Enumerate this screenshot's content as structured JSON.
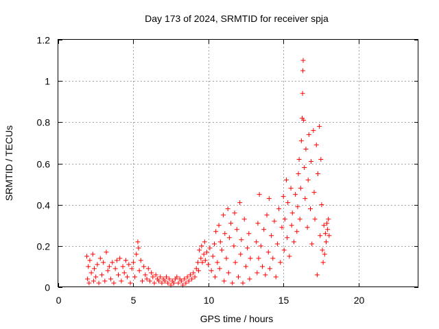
{
  "chart_data": {
    "type": "scatter",
    "title": "Day 173 of 2024, SRMTID for receiver spja",
    "xlabel": "GPS time / hours",
    "ylabel": "SRMTID / TECUs",
    "xlim": [
      0,
      24
    ],
    "ylim": [
      0,
      1.2
    ],
    "xticks": [
      0,
      5,
      10,
      15,
      20
    ],
    "yticks": [
      0,
      0.2,
      0.4,
      0.6,
      0.8,
      1.0,
      1.2
    ],
    "xtick_labels": [
      "0",
      "5",
      "10",
      "15",
      "20"
    ],
    "ytick_labels": [
      "0",
      "0.2",
      "0.4",
      "0.6",
      "0.8",
      "1",
      "1.2"
    ],
    "grid": true,
    "marker": "+",
    "series": [
      {
        "name": "SRMTID",
        "color": "#ff0000",
        "points": [
          [
            1.9,
            0.15
          ],
          [
            1.95,
            0.04
          ],
          [
            2.0,
            0.1
          ],
          [
            2.05,
            0.02
          ],
          [
            2.1,
            0.13
          ],
          [
            2.2,
            0.07
          ],
          [
            2.3,
            0.16
          ],
          [
            2.35,
            0.03
          ],
          [
            2.4,
            0.09
          ],
          [
            2.5,
            0.05
          ],
          [
            2.6,
            0.11
          ],
          [
            2.7,
            0.02
          ],
          [
            2.8,
            0.14
          ],
          [
            2.9,
            0.06
          ],
          [
            3.0,
            0.12
          ],
          [
            3.1,
            0.03
          ],
          [
            3.2,
            0.17
          ],
          [
            3.3,
            0.08
          ],
          [
            3.4,
            0.1
          ],
          [
            3.5,
            0.04
          ],
          [
            3.6,
            0.12
          ],
          [
            3.7,
            0.02
          ],
          [
            3.8,
            0.09
          ],
          [
            3.9,
            0.13
          ],
          [
            4.0,
            0.06
          ],
          [
            4.1,
            0.14
          ],
          [
            4.2,
            0.03
          ],
          [
            4.3,
            0.1
          ],
          [
            4.4,
            0.07
          ],
          [
            4.5,
            0.13
          ],
          [
            4.6,
            0.05
          ],
          [
            4.7,
            0.11
          ],
          [
            4.8,
            0.02
          ],
          [
            4.9,
            0.09
          ],
          [
            5.0,
            0.12
          ],
          [
            5.1,
            0.05
          ],
          [
            5.2,
            0.16
          ],
          [
            5.3,
            0.22
          ],
          [
            5.35,
            0.19
          ],
          [
            5.4,
            0.08
          ],
          [
            5.5,
            0.13
          ],
          [
            5.6,
            0.03
          ],
          [
            5.7,
            0.1
          ],
          [
            5.8,
            0.06
          ],
          [
            5.9,
            0.04
          ],
          [
            6.0,
            0.09
          ],
          [
            6.1,
            0.03
          ],
          [
            6.2,
            0.07
          ],
          [
            6.3,
            0.05
          ],
          [
            6.4,
            0.02
          ],
          [
            6.5,
            0.06
          ],
          [
            6.6,
            0.04
          ],
          [
            6.7,
            0.03
          ],
          [
            6.8,
            0.05
          ],
          [
            6.9,
            0.02
          ],
          [
            7.0,
            0.04
          ],
          [
            7.1,
            0.03
          ],
          [
            7.2,
            0.05
          ],
          [
            7.3,
            0.02
          ],
          [
            7.4,
            0.04
          ],
          [
            7.5,
            0.01
          ],
          [
            7.6,
            0.03
          ],
          [
            7.7,
            0.02
          ],
          [
            7.8,
            0.04
          ],
          [
            7.9,
            0.05
          ],
          [
            8.0,
            0.02
          ],
          [
            8.1,
            0.04
          ],
          [
            8.2,
            0.03
          ],
          [
            8.3,
            0.01
          ],
          [
            8.4,
            0.04
          ],
          [
            8.5,
            0.02
          ],
          [
            8.6,
            0.05
          ],
          [
            8.7,
            0.03
          ],
          [
            8.8,
            0.06
          ],
          [
            8.9,
            0.04
          ],
          [
            9.0,
            0.07
          ],
          [
            9.1,
            0.05
          ],
          [
            9.2,
            0.09
          ],
          [
            9.3,
            0.12
          ],
          [
            9.35,
            0.08
          ],
          [
            9.4,
            0.18
          ],
          [
            9.5,
            0.14
          ],
          [
            9.55,
            0.2
          ],
          [
            9.6,
            0.12
          ],
          [
            9.7,
            0.16
          ],
          [
            9.75,
            0.22
          ],
          [
            9.8,
            0.13
          ],
          [
            9.9,
            0.17
          ],
          [
            10.0,
            0.11
          ],
          [
            10.1,
            0.19
          ],
          [
            10.2,
            0.08
          ],
          [
            10.3,
            0.15
          ],
          [
            10.4,
            0.21
          ],
          [
            10.45,
            0.05
          ],
          [
            10.5,
            0.27
          ],
          [
            10.6,
            0.12
          ],
          [
            10.7,
            0.3
          ],
          [
            10.75,
            0.09
          ],
          [
            10.8,
            0.22
          ],
          [
            10.9,
            0.18
          ],
          [
            11.0,
            0.35
          ],
          [
            11.05,
            0.03
          ],
          [
            11.1,
            0.26
          ],
          [
            11.2,
            0.14
          ],
          [
            11.3,
            0.38
          ],
          [
            11.35,
            0.07
          ],
          [
            11.4,
            0.24
          ],
          [
            11.5,
            0.31
          ],
          [
            11.6,
            0.02
          ],
          [
            11.7,
            0.2
          ],
          [
            11.75,
            0.36
          ],
          [
            11.8,
            0.12
          ],
          [
            11.9,
            0.28
          ],
          [
            12.0,
            0.05
          ],
          [
            12.1,
            0.41
          ],
          [
            12.15,
            0.16
          ],
          [
            12.2,
            0.23
          ],
          [
            12.3,
            0.02
          ],
          [
            12.4,
            0.33
          ],
          [
            12.5,
            0.1
          ],
          [
            12.6,
            0.19
          ],
          [
            12.7,
            0.26
          ],
          [
            12.75,
            0.04
          ],
          [
            12.8,
            0.14
          ],
          [
            13.2,
            0.22
          ],
          [
            13.25,
            0.07
          ],
          [
            13.3,
            0.31
          ],
          [
            13.35,
            0.14
          ],
          [
            13.4,
            0.45
          ],
          [
            13.5,
            0.2
          ],
          [
            13.6,
            0.1
          ],
          [
            13.7,
            0.28
          ],
          [
            13.8,
            0.06
          ],
          [
            13.9,
            0.35
          ],
          [
            14.0,
            0.17
          ],
          [
            14.05,
            0.43
          ],
          [
            14.1,
            0.09
          ],
          [
            14.2,
            0.25
          ],
          [
            14.3,
            0.14
          ],
          [
            14.4,
            0.32
          ],
          [
            14.5,
            0.05
          ],
          [
            14.6,
            0.21
          ],
          [
            14.7,
            0.38
          ],
          [
            14.8,
            0.12
          ],
          [
            14.9,
            0.29
          ],
          [
            15.0,
            0.44
          ],
          [
            15.05,
            0.18
          ],
          [
            15.1,
            0.33
          ],
          [
            15.2,
            0.52
          ],
          [
            15.25,
            0.24
          ],
          [
            15.3,
            0.41
          ],
          [
            15.4,
            0.15
          ],
          [
            15.5,
            0.48
          ],
          [
            15.55,
            0.3
          ],
          [
            15.6,
            0.36
          ],
          [
            15.7,
            0.22
          ],
          [
            15.8,
            0.45
          ],
          [
            15.9,
            0.27
          ],
          [
            15.95,
            0.39
          ],
          [
            16.0,
            0.55
          ],
          [
            16.05,
            0.62
          ],
          [
            16.1,
            0.33
          ],
          [
            16.15,
            0.48
          ],
          [
            16.2,
            0.71
          ],
          [
            16.25,
            0.82
          ],
          [
            16.28,
            0.94
          ],
          [
            16.3,
            1.05
          ],
          [
            16.32,
            1.1
          ],
          [
            16.35,
            0.81
          ],
          [
            16.4,
            0.58
          ],
          [
            16.45,
            0.43
          ],
          [
            16.5,
            0.67
          ],
          [
            16.6,
            0.29
          ],
          [
            16.65,
            0.52
          ],
          [
            16.7,
            0.74
          ],
          [
            16.8,
            0.38
          ],
          [
            16.85,
            0.61
          ],
          [
            16.9,
            0.21
          ],
          [
            17.0,
            0.76
          ],
          [
            17.05,
            0.46
          ],
          [
            17.1,
            0.33
          ],
          [
            17.2,
            0.69
          ],
          [
            17.25,
            0.06
          ],
          [
            17.3,
            0.55
          ],
          [
            17.4,
            0.78
          ],
          [
            17.45,
            0.25
          ],
          [
            17.5,
            0.62
          ],
          [
            17.55,
            0.4
          ],
          [
            17.6,
            0.18
          ],
          [
            17.65,
            0.12
          ],
          [
            17.7,
            0.3
          ],
          [
            17.75,
            0.16
          ],
          [
            17.8,
            0.26
          ],
          [
            17.85,
            0.22
          ],
          [
            17.9,
            0.31
          ],
          [
            17.95,
            0.28
          ],
          [
            18.0,
            0.33
          ],
          [
            18.05,
            0.25
          ]
        ]
      }
    ]
  }
}
